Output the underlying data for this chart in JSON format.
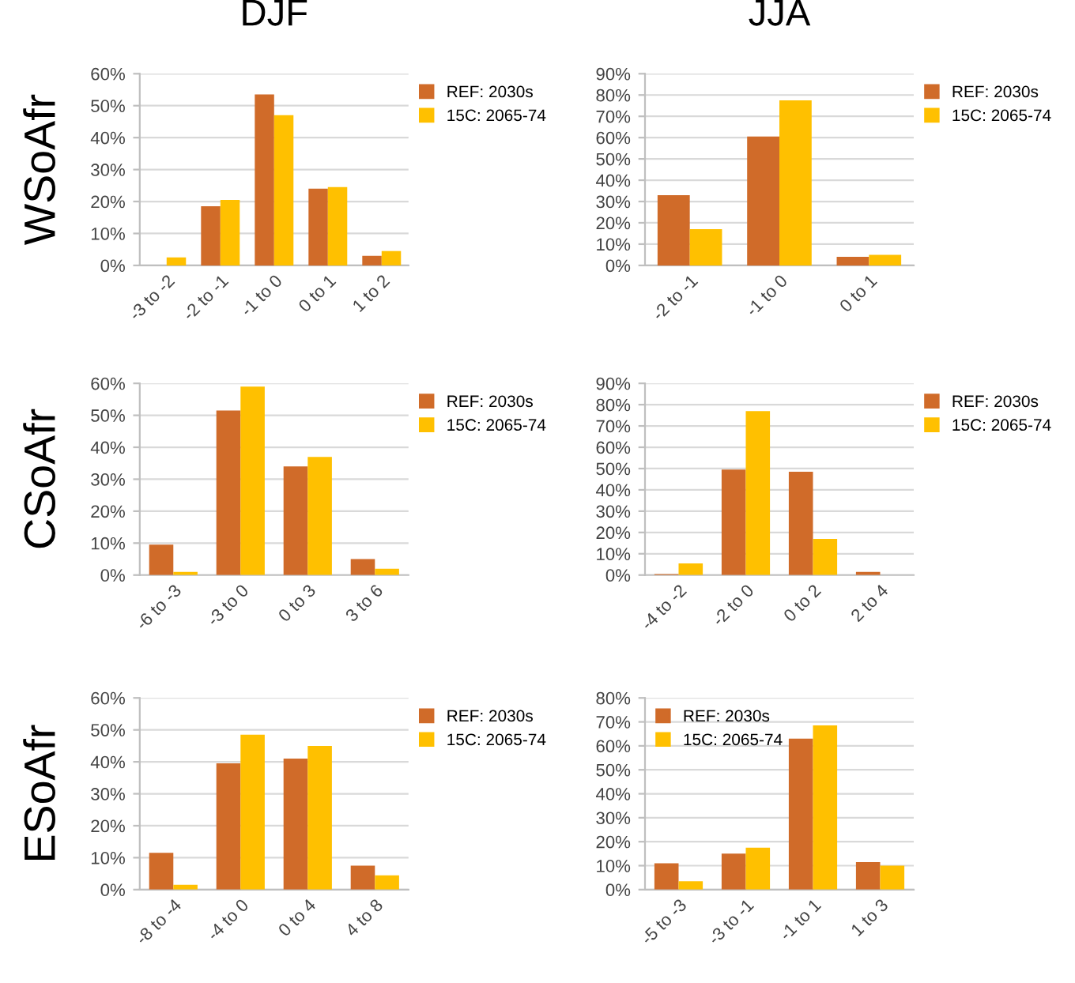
{
  "chart_data": [
    {
      "type": "bar",
      "title": "DJF",
      "ylabel": "WSoAfr",
      "categories": [
        "-3 to -2",
        "-2 to -1",
        "-1 to 0",
        "0 to 1",
        "1 to 2"
      ],
      "series": [
        {
          "name": "REF: 2030s",
          "color": "#d06b29",
          "values": [
            0,
            18.5,
            53.5,
            24,
            3
          ]
        },
        {
          "name": "15C: 2065-74",
          "color": "#ffc000",
          "values": [
            2.5,
            20.5,
            47,
            24.5,
            4.5
          ]
        }
      ],
      "ylim": [
        0,
        60
      ],
      "yticks": [
        {
          "value": 0,
          "label": "0%"
        },
        {
          "value": 10,
          "label": "10%"
        },
        {
          "value": 20,
          "label": "20%"
        },
        {
          "value": 30,
          "label": "30%"
        },
        {
          "value": 40,
          "label": "40%"
        },
        {
          "value": 50,
          "label": "50%"
        },
        {
          "value": 60,
          "label": "60%"
        }
      ],
      "grid": "y",
      "legend": "top right"
    },
    {
      "type": "bar",
      "title": "JJA",
      "categories": [
        "-2 to -1",
        "-1 to 0",
        "0 to 1"
      ],
      "series": [
        {
          "name": "REF: 2030s",
          "color": "#d06b29",
          "values": [
            33,
            60.5,
            4
          ]
        },
        {
          "name": "15C: 2065-74",
          "color": "#ffc000",
          "values": [
            17,
            77.5,
            5
          ]
        }
      ],
      "ylim": [
        0,
        90
      ],
      "yticks": [
        {
          "value": 0,
          "label": "0%"
        },
        {
          "value": 10,
          "label": "10%"
        },
        {
          "value": 20,
          "label": "20%"
        },
        {
          "value": 30,
          "label": "30%"
        },
        {
          "value": 40,
          "label": "40%"
        },
        {
          "value": 50,
          "label": "50%"
        },
        {
          "value": 60,
          "label": "60%"
        },
        {
          "value": 70,
          "label": "70%"
        },
        {
          "value": 80,
          "label": "80%"
        },
        {
          "value": 90,
          "label": "90%"
        }
      ],
      "grid": "y",
      "legend": "top right"
    },
    {
      "type": "bar",
      "ylabel": "CSoAfr",
      "categories": [
        "-6 to -3",
        "-3 to 0",
        "0 to 3",
        "3 to 6"
      ],
      "series": [
        {
          "name": "REF: 2030s",
          "color": "#d06b29",
          "values": [
            9.5,
            51.5,
            34,
            5
          ]
        },
        {
          "name": "15C: 2065-74",
          "color": "#ffc000",
          "values": [
            1,
            59,
            37,
            2
          ]
        }
      ],
      "ylim": [
        0,
        60
      ],
      "yticks": [
        {
          "value": 0,
          "label": "0%"
        },
        {
          "value": 10,
          "label": "10%"
        },
        {
          "value": 20,
          "label": "20%"
        },
        {
          "value": 30,
          "label": "30%"
        },
        {
          "value": 40,
          "label": "40%"
        },
        {
          "value": 50,
          "label": "50%"
        },
        {
          "value": 60,
          "label": "60%"
        }
      ],
      "grid": "y",
      "legend": "top right"
    },
    {
      "type": "bar",
      "categories": [
        "-4 to -2",
        "-2 to 0",
        "0 to 2",
        "2 to 4"
      ],
      "series": [
        {
          "name": "REF: 2030s",
          "color": "#d06b29",
          "values": [
            0.5,
            49.5,
            48.5,
            1.5
          ]
        },
        {
          "name": "15C: 2065-74",
          "color": "#ffc000",
          "values": [
            5.5,
            77,
            17,
            0
          ]
        }
      ],
      "ylim": [
        0,
        90
      ],
      "yticks": [
        {
          "value": 0,
          "label": "0%"
        },
        {
          "value": 10,
          "label": "10%"
        },
        {
          "value": 20,
          "label": "20%"
        },
        {
          "value": 30,
          "label": "30%"
        },
        {
          "value": 40,
          "label": "40%"
        },
        {
          "value": 50,
          "label": "50%"
        },
        {
          "value": 60,
          "label": "60%"
        },
        {
          "value": 70,
          "label": "70%"
        },
        {
          "value": 80,
          "label": "80%"
        },
        {
          "value": 90,
          "label": "90%"
        }
      ],
      "grid": "y",
      "legend": "top right"
    },
    {
      "type": "bar",
      "ylabel": "ESoAfr",
      "categories": [
        "-8 to -4",
        "-4 to 0",
        "0 to 4",
        "4 to 8"
      ],
      "series": [
        {
          "name": "REF: 2030s",
          "color": "#d06b29",
          "values": [
            11.5,
            39.5,
            41,
            7.5
          ]
        },
        {
          "name": "15C: 2065-74",
          "color": "#ffc000",
          "values": [
            1.5,
            48.5,
            45,
            4.5
          ]
        }
      ],
      "ylim": [
        0,
        60
      ],
      "yticks": [
        {
          "value": 0,
          "label": "0%"
        },
        {
          "value": 10,
          "label": "10%"
        },
        {
          "value": 20,
          "label": "20%"
        },
        {
          "value": 30,
          "label": "30%"
        },
        {
          "value": 40,
          "label": "40%"
        },
        {
          "value": 50,
          "label": "50%"
        },
        {
          "value": 60,
          "label": "60%"
        }
      ],
      "grid": "y",
      "legend": "top right"
    },
    {
      "type": "bar",
      "categories": [
        "-5 to -3",
        "-3 to -1",
        "-1 to 1",
        "1 to 3"
      ],
      "series": [
        {
          "name": "REF: 2030s",
          "color": "#d06b29",
          "values": [
            11,
            15,
            63,
            11.5
          ]
        },
        {
          "name": "15C: 2065-74",
          "color": "#ffc000",
          "values": [
            3.5,
            17.5,
            68.5,
            10
          ]
        }
      ],
      "ylim": [
        0,
        80
      ],
      "yticks": [
        {
          "value": 0,
          "label": "0%"
        },
        {
          "value": 10,
          "label": "10%"
        },
        {
          "value": 20,
          "label": "20%"
        },
        {
          "value": 30,
          "label": "30%"
        },
        {
          "value": 40,
          "label": "40%"
        },
        {
          "value": 50,
          "label": "50%"
        },
        {
          "value": 60,
          "label": "60%"
        },
        {
          "value": 70,
          "label": "70%"
        },
        {
          "value": 80,
          "label": "80%"
        }
      ],
      "grid": "y",
      "legend": "top left"
    }
  ]
}
